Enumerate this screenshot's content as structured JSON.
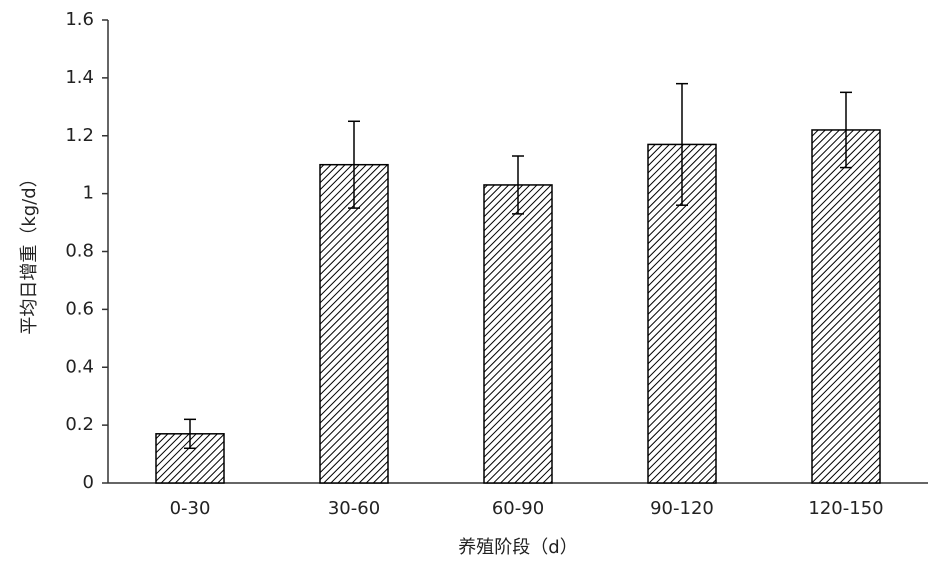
{
  "chart_data": {
    "type": "bar",
    "x_label": "养殖阶段（d）",
    "y_label": "平均日增重（kg/d）",
    "categories": [
      "0-30",
      "30-60",
      "60-90",
      "90-120",
      "120-150"
    ],
    "values": [
      0.17,
      1.1,
      1.03,
      1.17,
      1.22
    ],
    "errors": [
      0.05,
      0.15,
      0.1,
      0.21,
      0.13
    ],
    "color": "#000000",
    "ylim": [
      0,
      1.6
    ],
    "yticks": [
      0,
      0.2,
      0.4,
      0.6,
      0.8,
      1,
      1.2,
      1.4,
      1.6
    ],
    "grid": false
  }
}
